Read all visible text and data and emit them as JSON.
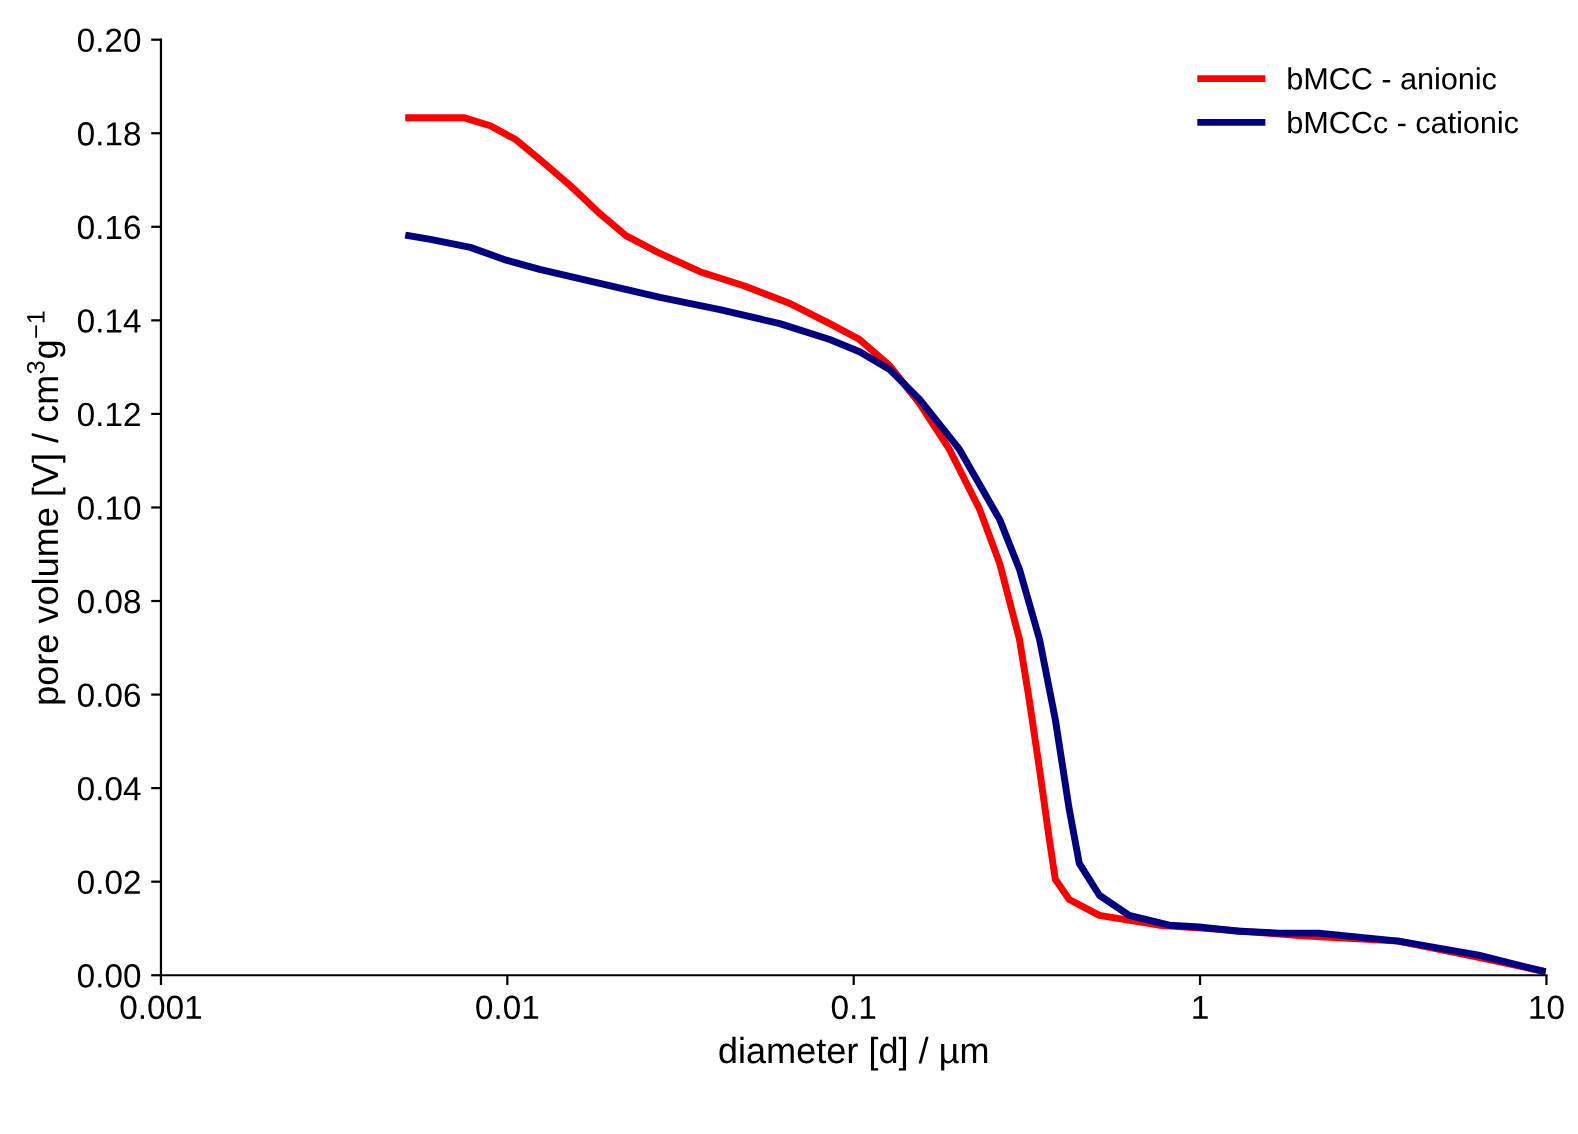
{
  "chart_data": {
    "type": "line",
    "xlabel": "diameter [d] / µm",
    "ylabel": "pore volume [V] / cm$^{3}$g$^{−1}$",
    "log": "x",
    "xlim": [
      0.001,
      10
    ],
    "xticks": [
      0.001,
      0.01,
      0.1,
      1,
      10
    ],
    "ylim": [
      0,
      0.2
    ],
    "yticks": [
      {
        "value": 0,
        "label": "0.00"
      },
      {
        "value": 0.02,
        "label": "0.02"
      },
      {
        "value": 0.04,
        "label": "0.04"
      },
      {
        "value": 0.06,
        "label": "0.06"
      },
      {
        "value": 0.08,
        "label": "0.08"
      },
      {
        "value": 0.1,
        "label": "0.10"
      },
      {
        "value": 0.12,
        "label": "0.12"
      },
      {
        "value": 0.14,
        "label": "0.14"
      },
      {
        "value": 0.16,
        "label": "0.16"
      },
      {
        "value": 0.18,
        "label": "0.18"
      },
      {
        "value": 0.2,
        "label": "0.20"
      }
    ],
    "grid": false,
    "legend": "top right",
    "marker": "none",
    "line_style": "solid",
    "series": [
      {
        "name": "bMCC - anionic",
        "color": "#ff0000",
        "x": [
          0.00519,
          0.00624,
          0.00752,
          0.00893,
          0.0106,
          0.0124,
          0.0152,
          0.0185,
          0.022,
          0.0276,
          0.036,
          0.0482,
          0.0655,
          0.0853,
          0.104,
          0.127,
          0.155,
          0.189,
          0.231,
          0.264,
          0.301,
          0.321,
          0.344,
          0.367,
          0.382,
          0.419,
          0.512,
          0.762,
          1.14,
          1.93,
          3.74,
          6.37,
          9.73
        ],
        "values": [
          0.1833,
          0.1833,
          0.1833,
          0.1816,
          0.1786,
          0.1744,
          0.1688,
          0.1628,
          0.1581,
          0.1543,
          0.1504,
          0.1474,
          0.1436,
          0.1393,
          0.1359,
          0.1303,
          0.1222,
          0.1124,
          0.0996,
          0.088,
          0.0718,
          0.059,
          0.044,
          0.0291,
          0.0205,
          0.0162,
          0.0128,
          0.0107,
          0.0098,
          0.0085,
          0.0073,
          0.0038,
          0.0009
        ]
      },
      {
        "name": "bMCCc - cationic",
        "color": "#000080",
        "x": [
          0.00519,
          0.006,
          0.00782,
          0.0098,
          0.0124,
          0.0185,
          0.0276,
          0.0411,
          0.0612,
          0.0853,
          0.104,
          0.127,
          0.155,
          0.202,
          0.264,
          0.301,
          0.344,
          0.382,
          0.419,
          0.448,
          0.512,
          0.624,
          0.815,
          0.993,
          1.29,
          1.69,
          2.2,
          3.74,
          6.37,
          9.73
        ],
        "values": [
          0.1581,
          0.1573,
          0.1556,
          0.153,
          0.1509,
          0.1479,
          0.1449,
          0.1423,
          0.1393,
          0.1359,
          0.1333,
          0.1295,
          0.1231,
          0.1124,
          0.0974,
          0.0868,
          0.0718,
          0.0547,
          0.0355,
          0.0239,
          0.0171,
          0.0128,
          0.0107,
          0.0103,
          0.0094,
          0.009,
          0.009,
          0.0073,
          0.0043,
          0.0009
        ]
      }
    ]
  }
}
